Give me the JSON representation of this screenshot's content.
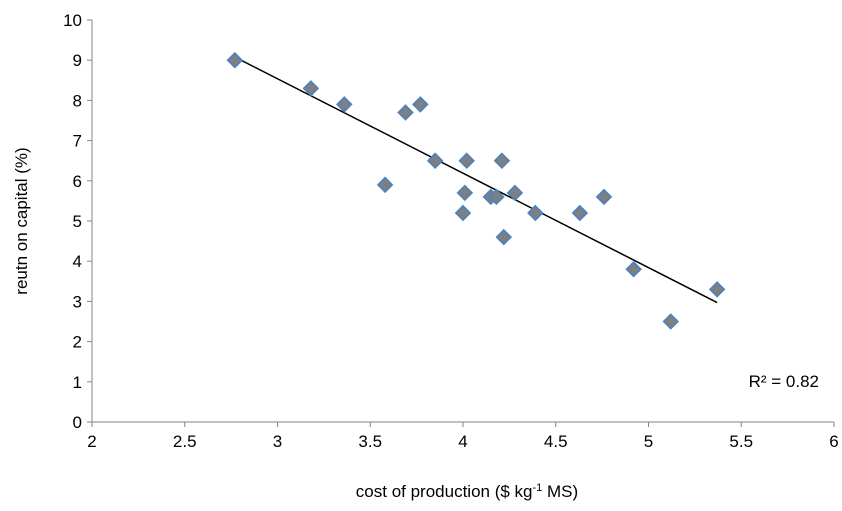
{
  "chart_data": {
    "type": "scatter",
    "title": "",
    "xlabel": "cost of production ($ kg-1 MS)",
    "xlabel_parts": {
      "main": "cost of production ($ kg",
      "sup": "-1",
      "rest": " MS)"
    },
    "ylabel": "reutn on capital (%)",
    "xlim": [
      2,
      6
    ],
    "ylim": [
      0,
      10
    ],
    "x_ticks": [
      "2",
      "2.5",
      "3",
      "3.5",
      "4",
      "4.5",
      "5",
      "5.5",
      "6"
    ],
    "y_ticks": [
      "0",
      "1",
      "2",
      "3",
      "4",
      "5",
      "6",
      "7",
      "8",
      "9",
      "10"
    ],
    "grid": false,
    "legend": "none",
    "marker": "diamond",
    "marker_color": "#7f7f7f",
    "marker_edge_color": "#4f81bd",
    "trendline": {
      "type": "linear",
      "color": "#000000",
      "r2_label": "R² = 0.82"
    },
    "series": [
      {
        "points": [
          [
            2.77,
            9.0
          ],
          [
            3.18,
            8.3
          ],
          [
            3.36,
            7.9
          ],
          [
            3.69,
            7.7
          ],
          [
            3.77,
            7.9
          ],
          [
            3.58,
            5.9
          ],
          [
            3.85,
            6.5
          ],
          [
            4.02,
            6.5
          ],
          [
            4.21,
            6.5
          ],
          [
            4.01,
            5.7
          ],
          [
            4.0,
            5.2
          ],
          [
            4.15,
            5.6
          ],
          [
            4.18,
            5.6
          ],
          [
            4.28,
            5.7
          ],
          [
            4.22,
            4.6
          ],
          [
            4.39,
            5.2
          ],
          [
            4.63,
            5.2
          ],
          [
            4.76,
            5.6
          ],
          [
            4.92,
            3.8
          ],
          [
            5.12,
            2.5
          ],
          [
            5.37,
            3.3
          ]
        ]
      }
    ]
  }
}
